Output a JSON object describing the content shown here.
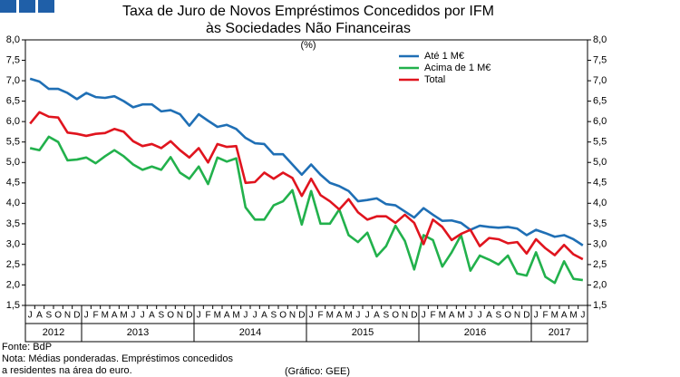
{
  "chart_data": {
    "type": "line",
    "title": [
      "Taxa de Juro de Novos Empréstimos Concedidos por IFM",
      "às Sociedades Não Financeiras"
    ],
    "subtitle": "(%)",
    "categories": [
      "J",
      "A",
      "S",
      "O",
      "N",
      "D",
      "J",
      "F",
      "M",
      "A",
      "M",
      "J",
      "J",
      "A",
      "S",
      "O",
      "N",
      "D",
      "J",
      "F",
      "M",
      "A",
      "M",
      "J",
      "J",
      "A",
      "S",
      "O",
      "N",
      "D",
      "J",
      "F",
      "M",
      "A",
      "M",
      "J",
      "J",
      "A",
      "S",
      "O",
      "N",
      "D",
      "J",
      "F",
      "M",
      "A",
      "M",
      "J",
      "J",
      "A",
      "S",
      "O",
      "N",
      "D",
      "J",
      "F",
      "M",
      "A",
      "M",
      "J"
    ],
    "year_spans": [
      {
        "label": "2012",
        "span": 6
      },
      {
        "label": "2013",
        "span": 12
      },
      {
        "label": "2014",
        "span": 12
      },
      {
        "label": "2015",
        "span": 12
      },
      {
        "label": "2016",
        "span": 12
      },
      {
        "label": "2017",
        "span": 6
      }
    ],
    "series": [
      {
        "name": "Até 1 M€",
        "color": "#1f6fb5",
        "values": [
          7.05,
          6.98,
          6.8,
          6.8,
          6.7,
          6.55,
          6.7,
          6.6,
          6.58,
          6.62,
          6.5,
          6.35,
          6.42,
          6.42,
          6.25,
          6.28,
          6.18,
          5.9,
          6.18,
          6.02,
          5.87,
          5.92,
          5.82,
          5.6,
          5.47,
          5.45,
          5.2,
          5.2,
          4.95,
          4.7,
          4.95,
          4.7,
          4.5,
          4.42,
          4.3,
          4.05,
          4.08,
          4.12,
          3.98,
          3.95,
          3.8,
          3.65,
          3.88,
          3.72,
          3.57,
          3.58,
          3.52,
          3.35,
          3.45,
          3.42,
          3.4,
          3.42,
          3.38,
          3.22,
          3.35,
          3.27,
          3.18,
          3.22,
          3.12,
          2.97
        ]
      },
      {
        "name": "Acima de 1 M€",
        "color": "#22b14c",
        "values": [
          5.35,
          5.3,
          5.63,
          5.5,
          5.05,
          5.07,
          5.12,
          4.98,
          5.15,
          5.3,
          5.15,
          4.95,
          4.82,
          4.9,
          4.82,
          5.13,
          4.75,
          4.6,
          4.9,
          4.47,
          5.12,
          5.02,
          5.1,
          3.9,
          3.6,
          3.6,
          3.95,
          4.05,
          4.32,
          3.48,
          4.3,
          3.5,
          3.5,
          3.85,
          3.22,
          3.05,
          3.28,
          2.7,
          2.95,
          3.45,
          3.08,
          2.38,
          3.22,
          3.1,
          2.45,
          2.8,
          3.22,
          2.35,
          2.72,
          2.62,
          2.5,
          2.72,
          2.28,
          2.23,
          2.8,
          2.2,
          2.05,
          2.58,
          2.15,
          2.12
        ]
      },
      {
        "name": "Total",
        "color": "#e0141e",
        "values": [
          5.95,
          6.23,
          6.12,
          6.1,
          5.73,
          5.7,
          5.65,
          5.7,
          5.72,
          5.82,
          5.75,
          5.52,
          5.4,
          5.45,
          5.35,
          5.52,
          5.3,
          5.12,
          5.35,
          5.0,
          5.45,
          5.38,
          5.4,
          4.5,
          4.52,
          4.75,
          4.6,
          4.75,
          4.62,
          4.18,
          4.6,
          4.2,
          4.05,
          3.85,
          4.1,
          3.78,
          3.6,
          3.68,
          3.68,
          3.52,
          3.72,
          3.52,
          3.0,
          3.6,
          3.42,
          3.1,
          3.25,
          3.35,
          2.95,
          3.15,
          3.12,
          3.02,
          3.05,
          2.77,
          3.12,
          2.9,
          2.73,
          2.98,
          2.75,
          2.63
        ]
      }
    ],
    "ylim": [
      1.5,
      8.0
    ],
    "yticks": [
      {
        "value": 1.5,
        "label": "1,5"
      },
      {
        "value": 2.0,
        "label": "2,0"
      },
      {
        "value": 2.5,
        "label": "2,5"
      },
      {
        "value": 3.0,
        "label": "3,0"
      },
      {
        "value": 3.5,
        "label": "3,5"
      },
      {
        "value": 4.0,
        "label": "4,0"
      },
      {
        "value": 4.5,
        "label": "4,5"
      },
      {
        "value": 5.0,
        "label": "5,0"
      },
      {
        "value": 5.5,
        "label": "5,5"
      },
      {
        "value": 6.0,
        "label": "6,0"
      },
      {
        "value": 6.5,
        "label": "6,5"
      },
      {
        "value": 7.0,
        "label": "7,0"
      },
      {
        "value": 7.5,
        "label": "7,5"
      },
      {
        "value": 8.0,
        "label": "8,0"
      }
    ],
    "y2lim": [
      1.5,
      8.0
    ],
    "y2ticks": [
      {
        "value": 1.5,
        "label": "1,5"
      },
      {
        "value": 2.0,
        "label": "2,0"
      },
      {
        "value": 2.5,
        "label": "2,5"
      },
      {
        "value": 3.0,
        "label": "3,0"
      },
      {
        "value": 3.5,
        "label": "3,5"
      },
      {
        "value": 4.0,
        "label": "4,0"
      },
      {
        "value": 4.5,
        "label": "4,5"
      },
      {
        "value": 5.0,
        "label": "5,0"
      },
      {
        "value": 5.5,
        "label": "5,5"
      },
      {
        "value": 6.0,
        "label": "6,0"
      },
      {
        "value": 6.5,
        "label": "6,5"
      },
      {
        "value": 7.0,
        "label": "7,0"
      },
      {
        "value": 7.5,
        "label": "7,5"
      },
      {
        "value": 8.0,
        "label": "8,0"
      }
    ],
    "grid": false,
    "legend": "top-right",
    "notes": [
      "Fonte: BdP",
      "Nota: Médias ponderadas. Empréstimos concedidos",
      "a residentes na área do euro."
    ],
    "credit": "(Gráfico: GEE)"
  }
}
